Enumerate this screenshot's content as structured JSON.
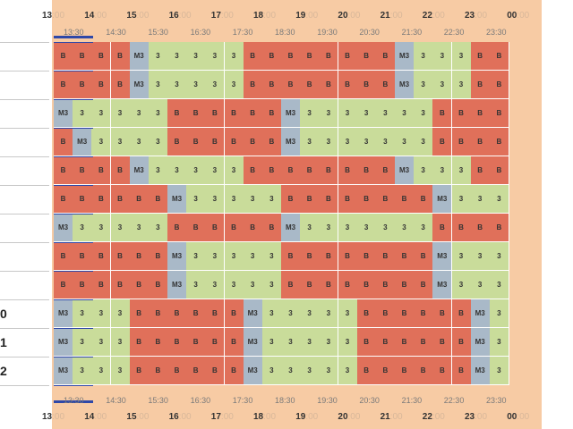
{
  "timeline": {
    "hours": [
      "13",
      "14",
      "15",
      "16",
      "17",
      "18",
      "19",
      "20",
      "21",
      "22",
      "23",
      "00"
    ],
    "minute_suffix": ":00",
    "half_hours": [
      "13:30",
      "14:30",
      "15:30",
      "16:30",
      "17:30",
      "18:30",
      "19:30",
      "20:30",
      "21:30",
      "22:30",
      "23:30"
    ]
  },
  "rows": [
    {
      "label": "",
      "cells": [
        "B",
        "B",
        "B",
        "B",
        "M3",
        "3",
        "3",
        "3",
        "3",
        "3",
        "B",
        "B",
        "B",
        "B",
        "B",
        "B",
        "B",
        "B",
        "M3",
        "3",
        "3",
        "3",
        "B",
        "B"
      ]
    },
    {
      "label": "",
      "cells": [
        "B",
        "B",
        "B",
        "B",
        "M3",
        "3",
        "3",
        "3",
        "3",
        "3",
        "B",
        "B",
        "B",
        "B",
        "B",
        "B",
        "B",
        "B",
        "M3",
        "3",
        "3",
        "3",
        "B",
        "B"
      ]
    },
    {
      "label": "",
      "cells": [
        "M3",
        "3",
        "3",
        "3",
        "3",
        "3",
        "B",
        "B",
        "B",
        "B",
        "B",
        "B",
        "M3",
        "3",
        "3",
        "3",
        "3",
        "3",
        "3",
        "3",
        "B",
        "B",
        "B",
        "B"
      ]
    },
    {
      "label": "",
      "cells": [
        "B",
        "M3",
        "3",
        "3",
        "3",
        "3",
        "B",
        "B",
        "B",
        "B",
        "B",
        "B",
        "M3",
        "3",
        "3",
        "3",
        "3",
        "3",
        "3",
        "3",
        "B",
        "B",
        "B",
        "B"
      ]
    },
    {
      "label": "",
      "cells": [
        "B",
        "B",
        "B",
        "B",
        "M3",
        "3",
        "3",
        "3",
        "3",
        "3",
        "B",
        "B",
        "B",
        "B",
        "B",
        "B",
        "B",
        "B",
        "M3",
        "3",
        "3",
        "3",
        "B",
        "B"
      ]
    },
    {
      "label": "",
      "cells": [
        "B",
        "B",
        "B",
        "B",
        "B",
        "B",
        "M3",
        "3",
        "3",
        "3",
        "3",
        "3",
        "B",
        "B",
        "B",
        "B",
        "B",
        "B",
        "B",
        "B",
        "M3",
        "3",
        "3",
        "3"
      ]
    },
    {
      "label": "",
      "cells": [
        "M3",
        "3",
        "3",
        "3",
        "3",
        "3",
        "B",
        "B",
        "B",
        "B",
        "B",
        "B",
        "M3",
        "3",
        "3",
        "3",
        "3",
        "3",
        "3",
        "3",
        "B",
        "B",
        "B",
        "B"
      ]
    },
    {
      "label": "",
      "cells": [
        "B",
        "B",
        "B",
        "B",
        "B",
        "B",
        "M3",
        "3",
        "3",
        "3",
        "3",
        "3",
        "B",
        "B",
        "B",
        "B",
        "B",
        "B",
        "B",
        "B",
        "M3",
        "3",
        "3",
        "3"
      ]
    },
    {
      "label": "",
      "cells": [
        "B",
        "B",
        "B",
        "B",
        "B",
        "B",
        "M3",
        "3",
        "3",
        "3",
        "3",
        "3",
        "B",
        "B",
        "B",
        "B",
        "B",
        "B",
        "B",
        "B",
        "M3",
        "3",
        "3",
        "3"
      ]
    },
    {
      "label": "0",
      "cells": [
        "M3",
        "3",
        "3",
        "3",
        "B",
        "B",
        "B",
        "B",
        "B",
        "B",
        "M3",
        "3",
        "3",
        "3",
        "3",
        "3",
        "B",
        "B",
        "B",
        "B",
        "B",
        "B",
        "M3",
        "3"
      ]
    },
    {
      "label": "1",
      "cells": [
        "M3",
        "3",
        "3",
        "3",
        "B",
        "B",
        "B",
        "B",
        "B",
        "B",
        "M3",
        "3",
        "3",
        "3",
        "3",
        "3",
        "B",
        "B",
        "B",
        "B",
        "B",
        "B",
        "M3",
        "3"
      ]
    },
    {
      "label": "2",
      "cells": [
        "M3",
        "3",
        "3",
        "3",
        "B",
        "B",
        "B",
        "B",
        "B",
        "B",
        "M3",
        "3",
        "3",
        "3",
        "3",
        "3",
        "B",
        "B",
        "B",
        "B",
        "B",
        "B",
        "M3",
        "3"
      ]
    }
  ],
  "colors": {
    "3": "#c9dc9a",
    "B": "#e0705a",
    "M3": "#a9b9c8",
    "now": "#2f48a8",
    "background": "#f7cba4"
  }
}
